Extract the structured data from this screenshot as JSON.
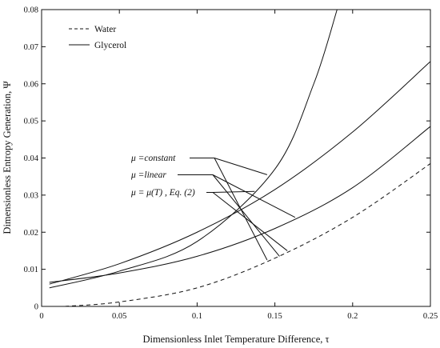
{
  "chart_data": {
    "type": "line",
    "title": "",
    "xlabel": "Dimensionless Inlet Temperature Difference, τ",
    "ylabel": "Dimensionless Entropy Generation, Ψ",
    "xlim": [
      0,
      0.25
    ],
    "ylim": [
      0,
      0.08
    ],
    "xticks": [
      "0",
      "0.05",
      "0.1",
      "0.15",
      "0.2",
      "0.25"
    ],
    "yticks": [
      "0",
      "0.01",
      "0.02",
      "0.03",
      "0.04",
      "0.05",
      "0.06",
      "0.07",
      "0.08"
    ],
    "grid": false,
    "legend_position": "top-left",
    "legend": [
      {
        "label": "Water",
        "style": "dashed"
      },
      {
        "label": "Glycerol",
        "style": "solid"
      }
    ],
    "series": [
      {
        "name": "Water",
        "style": "dashed",
        "x": [
          0.015,
          0.05,
          0.1,
          0.15,
          0.2,
          0.25
        ],
        "y": [
          0.0,
          0.0012,
          0.005,
          0.013,
          0.024,
          0.0385
        ]
      },
      {
        "name": "Glycerol",
        "label": "μ =constant",
        "style": "solid",
        "x": [
          0.005,
          0.05,
          0.1,
          0.15,
          0.2,
          0.25
        ],
        "y": [
          0.006,
          0.0115,
          0.02,
          0.0315,
          0.047,
          0.066
        ]
      },
      {
        "name": "Glycerol",
        "label": "μ =linear",
        "style": "solid",
        "x": [
          0.005,
          0.05,
          0.1,
          0.15,
          0.2,
          0.25
        ],
        "y": [
          0.0065,
          0.009,
          0.0135,
          0.021,
          0.032,
          0.0485
        ]
      },
      {
        "name": "Glycerol",
        "label": "μ = μ(T) , Eq. (2)",
        "style": "solid",
        "x": [
          0.005,
          0.05,
          0.1,
          0.15,
          0.175,
          0.19
        ],
        "y": [
          0.005,
          0.0095,
          0.0175,
          0.037,
          0.06,
          0.08
        ]
      }
    ],
    "annotations": [
      {
        "text": "μ =constant",
        "targets": [
          [
            0.145,
            0.0355
          ],
          [
            0.145,
            0.0125
          ]
        ]
      },
      {
        "text": "μ =linear",
        "targets": [
          [
            0.163,
            0.024
          ],
          [
            0.153,
            0.0135
          ]
        ]
      },
      {
        "text": "μ = μ(T) , Eq. (2)",
        "targets": [
          [
            0.137,
            0.031
          ],
          [
            0.158,
            0.015
          ]
        ]
      }
    ]
  }
}
